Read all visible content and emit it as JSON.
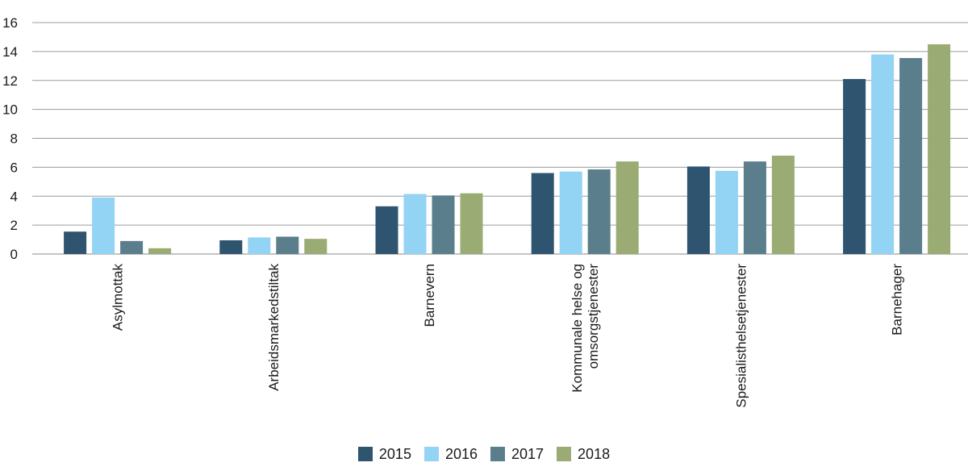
{
  "chart_data": {
    "type": "bar",
    "title": "",
    "xlabel": "",
    "ylabel": "",
    "ylim": [
      0,
      16
    ],
    "yticks": [
      0,
      2,
      4,
      6,
      8,
      10,
      12,
      14,
      16
    ],
    "grid": true,
    "legend_position": "bottom",
    "categories": [
      [
        "Asylmottak"
      ],
      [
        "Arbeidsmarkedstiltak"
      ],
      [
        "Barnevern"
      ],
      [
        "Kommunale helse og",
        "omsorgstjenester"
      ],
      [
        "Spesialisthelsetjenester"
      ],
      [
        "Barnehager"
      ]
    ],
    "series": [
      {
        "name": "2015",
        "color": "#2e5470",
        "values": [
          1.55,
          0.95,
          3.3,
          5.6,
          6.05,
          12.1
        ]
      },
      {
        "name": "2016",
        "color": "#93d3f4",
        "values": [
          3.9,
          1.15,
          4.15,
          5.7,
          5.75,
          13.8
        ]
      },
      {
        "name": "2017",
        "color": "#5a7e8c",
        "values": [
          0.9,
          1.2,
          4.05,
          5.85,
          6.4,
          13.55
        ]
      },
      {
        "name": "2018",
        "color": "#9aab73",
        "values": [
          0.4,
          1.05,
          4.2,
          6.4,
          6.8,
          14.5
        ]
      }
    ]
  }
}
